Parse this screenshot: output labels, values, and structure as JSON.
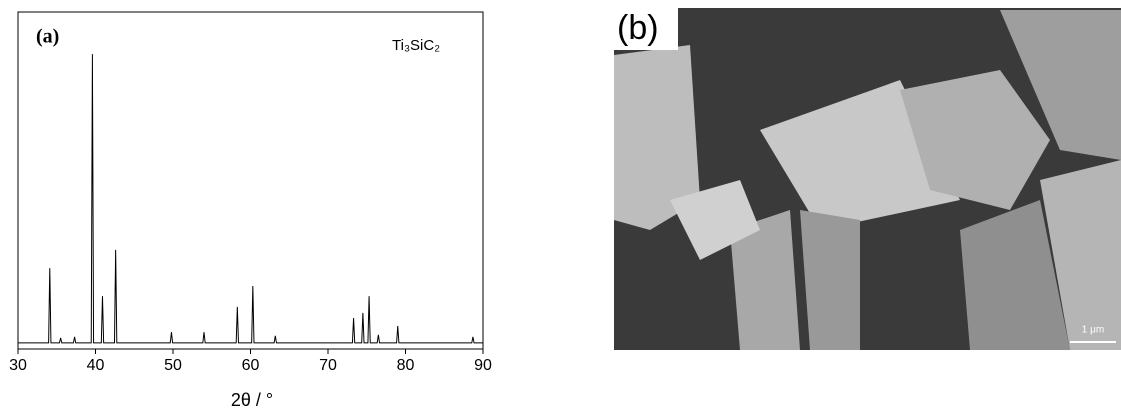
{
  "chart_data": {
    "type": "line",
    "panel_label": "(a)",
    "annotation": "Ti₃SiC₂",
    "x_label": "2θ / °",
    "x": [
      30,
      33.95,
      34.1,
      34.25,
      35.35,
      35.5,
      35.65,
      37.15,
      37.3,
      37.45,
      39.45,
      39.6,
      39.75,
      40.75,
      40.9,
      41.05,
      42.45,
      42.6,
      42.75,
      49.65,
      49.8,
      49.95,
      53.85,
      54.0,
      54.15,
      58.15,
      58.3,
      58.45,
      60.15,
      60.3,
      60.45,
      63.05,
      63.2,
      63.35,
      73.15,
      73.3,
      73.45,
      74.35,
      74.5,
      74.65,
      75.15,
      75.3,
      75.45,
      76.35,
      76.5,
      76.65,
      78.85,
      79.0,
      79.15,
      88.55,
      88.7,
      88.85,
      90
    ],
    "series": [
      {
        "color": "#000000",
        "values": [
          1.8,
          1.8,
          24,
          1.8,
          1.8,
          3.3,
          1.8,
          1.8,
          3.6,
          1.8,
          1.8,
          87.5,
          1.8,
          1.8,
          15.7,
          1.8,
          1.8,
          29.4,
          1.8,
          1.8,
          5,
          1.8,
          1.8,
          5,
          1.8,
          1.8,
          12.5,
          1.8,
          1.8,
          18.7,
          1.8,
          1.8,
          3.9,
          1.8,
          1.8,
          9.2,
          1.8,
          1.8,
          10.7,
          1.8,
          1.8,
          15.7,
          1.8,
          1.8,
          4.2,
          1.8,
          1.8,
          6.8,
          1.8,
          1.8,
          3.6,
          1.8,
          1.8
        ]
      }
    ],
    "xlim": [
      30,
      90
    ],
    "xticks": [
      30,
      40,
      50,
      60,
      70,
      80,
      90
    ],
    "ylim": [
      0,
      100
    ]
  },
  "image_panel": {
    "label": "(b)",
    "scale_bar": "1 μm"
  }
}
